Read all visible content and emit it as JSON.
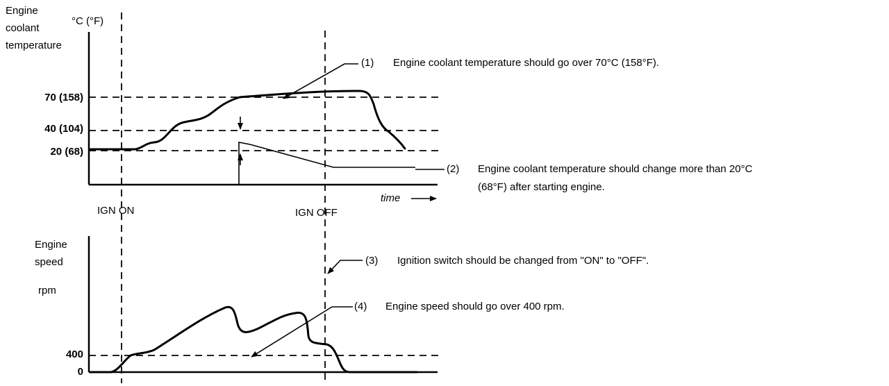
{
  "top_chart": {
    "ylabel_lines": [
      "Engine",
      "coolant",
      "temperature"
    ],
    "unit": "°C (°F)",
    "ticks": [
      "70 (158)",
      "40 (104)",
      "20 (68)"
    ],
    "time_label": "time"
  },
  "events": {
    "ign_on": "IGN ON",
    "ign_off": "IGN OFF"
  },
  "bottom_chart": {
    "ylabel_lines": [
      "Engine",
      "speed"
    ],
    "unit": "rpm",
    "ticks": [
      "400",
      "0"
    ]
  },
  "annotations": [
    {
      "id": "(1)",
      "lines": [
        "Engine coolant temperature should go over 70°C (158°F)."
      ]
    },
    {
      "id": "(2)",
      "lines": [
        "Engine coolant temperature should change more than 20°C",
        "(68°F) after starting engine."
      ]
    },
    {
      "id": "(3)",
      "lines": [
        "Ignition switch should be changed from \"ON\" to \"OFF\"."
      ]
    },
    {
      "id": "(4)",
      "lines": [
        "Engine speed should go over 400 rpm."
      ]
    }
  ]
}
